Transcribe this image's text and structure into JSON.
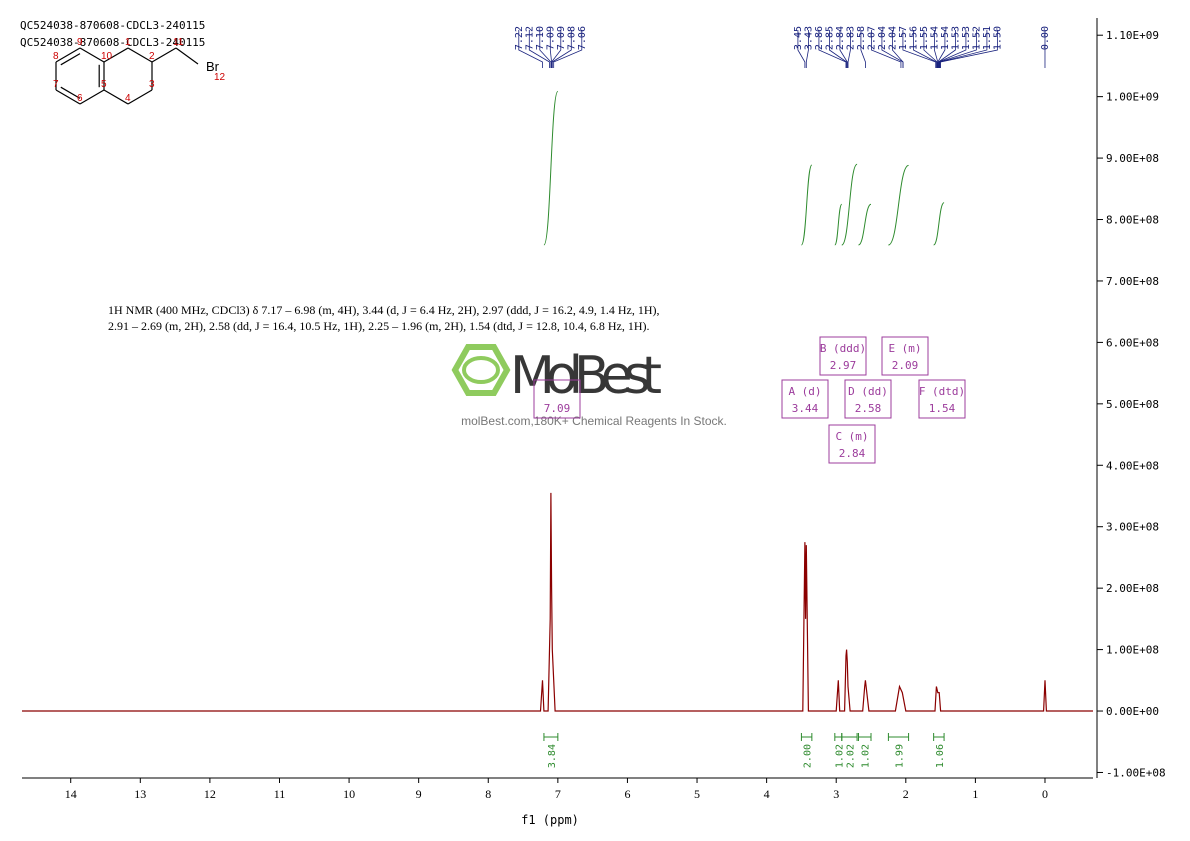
{
  "header": {
    "lines": [
      "QC524038-870608-CDCL3-240115",
      "QC524038-870608-CDCL3-240115"
    ]
  },
  "structure": {
    "atoms": [
      "1",
      "2",
      "3",
      "4",
      "5",
      "6",
      "7",
      "8",
      "9",
      "10",
      "11",
      "12"
    ],
    "element": "Br"
  },
  "watermark": {
    "brand": "MolBest",
    "tagline": "molBest.com,180K+ Chemical Reagents In Stock."
  },
  "chart_data": {
    "type": "nmr",
    "x_label": "f1 (ppm)",
    "description": "1H NMR (400 MHz, CDCl3) δ 7.17 – 6.98 (m, 4H), 3.44 (d, J = 6.4 Hz, 2H), 2.97 (ddd, J = 16.2, 4.9, 1.4 Hz, 1H), 2.91 – 2.69 (m, 2H), 2.58 (dd, J = 16.4, 10.5 Hz, 1H), 2.25 – 1.96 (m, 2H), 1.54 (dtd, J = 12.8, 10.4, 6.8 Hz, 1H).",
    "xlim": [
      14.7,
      -0.69
    ],
    "xticks": [
      14,
      13,
      12,
      11,
      10,
      9,
      8,
      7,
      6,
      5,
      4,
      3,
      2,
      1,
      0
    ],
    "ylim": [
      -109000000,
      1128000000
    ],
    "yticks": [
      {
        "value": -100000000,
        "label": "-1.00E+08"
      },
      {
        "value": 0,
        "label": "0.00E+00"
      },
      {
        "value": 100000000,
        "label": "1.00E+08"
      },
      {
        "value": 200000000,
        "label": "2.00E+08"
      },
      {
        "value": 300000000,
        "label": "3.00E+08"
      },
      {
        "value": 400000000,
        "label": "4.00E+08"
      },
      {
        "value": 500000000,
        "label": "5.00E+08"
      },
      {
        "value": 600000000,
        "label": "6.00E+08"
      },
      {
        "value": 700000000,
        "label": "7.00E+08"
      },
      {
        "value": 800000000,
        "label": "8.00E+08"
      },
      {
        "value": 900000000,
        "label": "9.00E+08"
      },
      {
        "value": 1000000000,
        "label": "1.00E+09"
      },
      {
        "value": 1100000000,
        "label": "1.10E+09"
      }
    ],
    "color": "#8b0000",
    "x": [
      14.7,
      7.25,
      7.22,
      7.2,
      7.14,
      7.12,
      7.11,
      7.1,
      7.09,
      7.08,
      7.06,
      7.04,
      3.48,
      3.45,
      3.44,
      3.43,
      3.4,
      3.0,
      2.97,
      2.95,
      2.88,
      2.86,
      2.85,
      2.84,
      2.83,
      2.8,
      2.62,
      2.59,
      2.58,
      2.56,
      2.53,
      2.15,
      2.09,
      2.05,
      2.0,
      1.58,
      1.56,
      1.54,
      1.52,
      1.5,
      0.02,
      0,
      -0.02,
      -0.69
    ],
    "values": [
      0,
      0,
      50000000,
      0,
      0,
      100000000,
      150000000,
      355000000,
      200000000,
      100000000,
      50000000,
      0,
      0,
      275000000,
      150000000,
      270000000,
      0,
      0,
      50000000,
      0,
      0,
      90000000,
      100000000,
      80000000,
      40000000,
      0,
      0,
      40000000,
      50000000,
      30000000,
      0,
      0,
      40000000,
      30000000,
      0,
      0,
      40000000,
      30000000,
      30000000,
      0,
      0,
      50000000,
      0,
      0
    ],
    "peaks": {
      "values": [
        7.22,
        7.12,
        7.1,
        7.09,
        7.09,
        7.08,
        7.06,
        3.45,
        3.43,
        2.86,
        2.85,
        2.84,
        2.83,
        2.58,
        2.07,
        2.04,
        2.04,
        1.57,
        1.56,
        1.55,
        1.54,
        1.54,
        1.53,
        1.53,
        1.52,
        1.51,
        1.5,
        0
      ],
      "value_labels": [
        "7.22",
        "7.12",
        "7.10",
        "7.09",
        "7.09",
        "7.08",
        "7.06",
        "3.45",
        "3.43",
        "2.86",
        "2.85",
        "2.84",
        "2.83",
        "2.58",
        "2.07",
        "2.04",
        "2.04",
        "1.57",
        "1.56",
        "1.55",
        "1.54",
        "1.54",
        "1.53",
        "1.53",
        "1.52",
        "1.51",
        "1.50",
        "0.00"
      ],
      "color": "#1a237e"
    },
    "integrals": {
      "ranges": [
        [
          7.2,
          7.0
        ],
        [
          3.5,
          3.35
        ],
        [
          3.02,
          2.92
        ],
        [
          2.92,
          2.7
        ],
        [
          2.68,
          2.5
        ],
        [
          2.25,
          1.96
        ],
        [
          1.6,
          1.45
        ]
      ],
      "values": [
        3.84,
        2,
        1.02,
        2.02,
        1.02,
        1.99,
        1.06
      ],
      "value_labels": [
        "3.84",
        "2.00",
        "1.02",
        "2.02",
        "1.02",
        "1.99",
        "1.06"
      ],
      "color": "#2e8b2e"
    },
    "multiplets": {
      "labels": [
        null,
        "A (d)",
        "B (ddd)",
        "C (m)",
        "D (dd)",
        "E (m)",
        "F (dtd)"
      ],
      "values": [
        7.09,
        3.44,
        2.97,
        2.84,
        2.58,
        2.09,
        1.54
      ],
      "color": "#9c3c9c"
    }
  }
}
